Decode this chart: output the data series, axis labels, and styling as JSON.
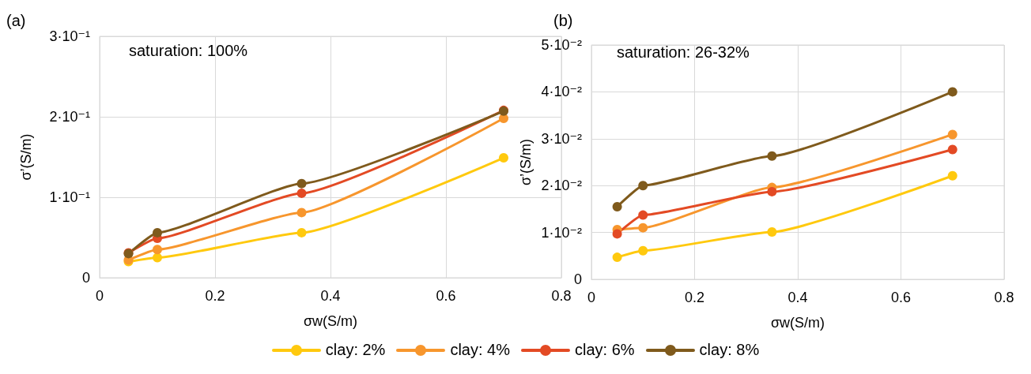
{
  "chart_data": [
    {
      "type": "line",
      "title": "(a)",
      "xlabel": "σw(S/m)",
      "ylabel": "σ’(S/m)",
      "annotations": [
        "saturation: 100%"
      ],
      "x": [
        0.05,
        0.1,
        0.35,
        0.7
      ],
      "series": [
        {
          "name": "clay: 2%",
          "color": "#ffc90e",
          "values": [
            0.02,
            0.025,
            0.056,
            0.149
          ]
        },
        {
          "name": "clay: 4%",
          "color": "#f7962d",
          "values": [
            0.022,
            0.035,
            0.081,
            0.198
          ]
        },
        {
          "name": "clay: 6%",
          "color": "#e34a24",
          "values": [
            0.031,
            0.049,
            0.105,
            0.208
          ]
        },
        {
          "name": "clay: 8%",
          "color": "#7f5a1c",
          "values": [
            0.03,
            0.056,
            0.117,
            0.207
          ]
        }
      ],
      "xlim": [
        0,
        0.8
      ],
      "xticks": [
        0,
        0.2,
        0.4,
        0.6,
        0.8
      ],
      "ylim": [
        0,
        0.3
      ],
      "yticks": [
        0,
        {
          "value": 0.1,
          "label": "1·10⁻¹"
        },
        {
          "value": 0.2,
          "label": "2·10⁻¹"
        },
        {
          "value": 0.3,
          "label": "3·10⁻¹"
        }
      ],
      "grid": true,
      "marker": "circle",
      "line_style": "solid",
      "legend": "bottom"
    },
    {
      "type": "line",
      "title": "(b)",
      "xlabel": "σw(S/m)",
      "ylabel": "σ’(S/m)",
      "annotations": [
        "saturation: 26-32%"
      ],
      "x": [
        0.05,
        0.1,
        0.35,
        0.7
      ],
      "series": [
        {
          "name": "clay: 2%",
          "color": "#ffc90e",
          "values": [
            0.0047,
            0.0061,
            0.0101,
            0.0221
          ]
        },
        {
          "name": "clay: 4%",
          "color": "#f7962d",
          "values": [
            0.0106,
            0.011,
            0.0196,
            0.0309
          ]
        },
        {
          "name": "clay: 6%",
          "color": "#e34a24",
          "values": [
            0.0097,
            0.0137,
            0.0187,
            0.0277
          ]
        },
        {
          "name": "clay: 8%",
          "color": "#7f5a1c",
          "values": [
            0.0155,
            0.02,
            0.0263,
            0.04
          ]
        }
      ],
      "xlim": [
        0,
        0.8
      ],
      "xticks": [
        0,
        0.2,
        0.4,
        0.6,
        0.8
      ],
      "ylim": [
        0,
        0.05
      ],
      "yticks": [
        0,
        {
          "value": 0.01,
          "label": "1·10⁻²"
        },
        {
          "value": 0.02,
          "label": "2·10⁻²"
        },
        {
          "value": 0.03,
          "label": "3·10⁻²"
        },
        {
          "value": 0.04,
          "label": "4·10⁻²"
        },
        {
          "value": 0.05,
          "label": "5·10⁻²"
        }
      ],
      "grid": true,
      "marker": "circle",
      "line_style": "solid",
      "legend": "bottom"
    }
  ]
}
